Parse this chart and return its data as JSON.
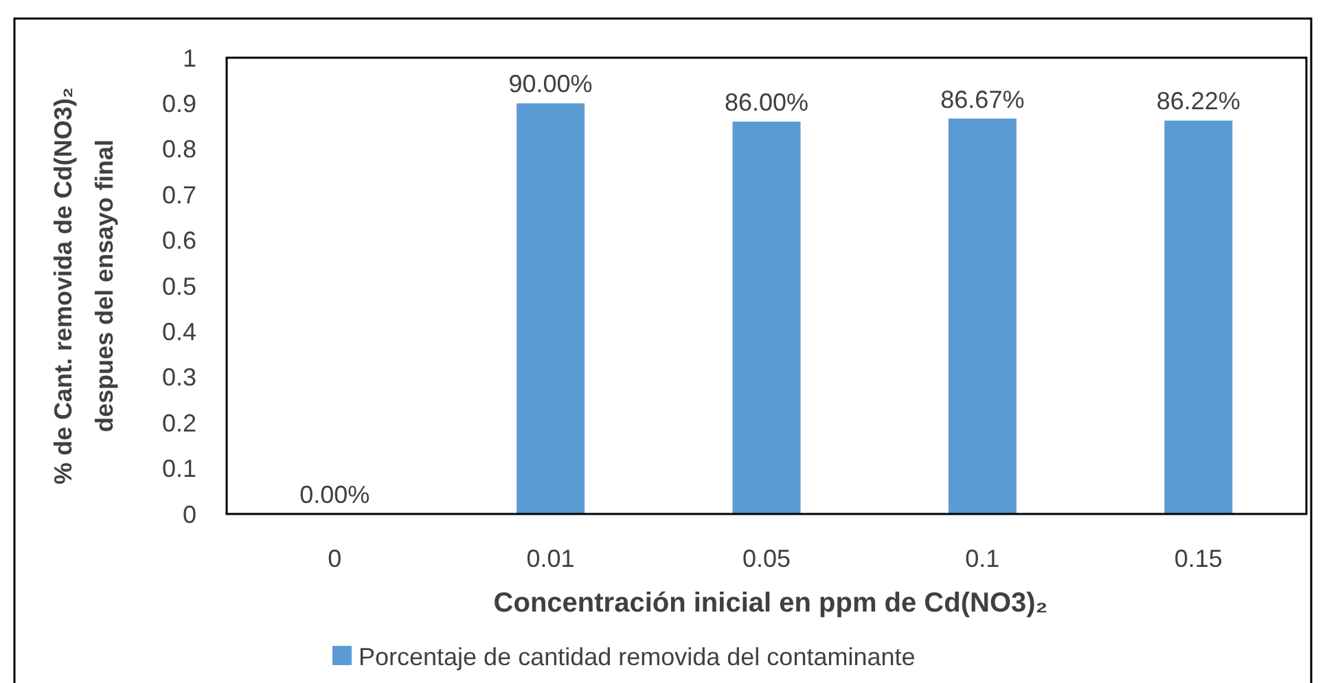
{
  "chart_data": {
    "type": "bar",
    "xlabel": "Concentración inicial en ppm de Cd(NO3)₂",
    "ylabel": "% de Cant. removida  de Cd(NO3)₂\ndespues del ensayo final",
    "categories": [
      "0",
      "0.01",
      "0.05",
      "0.1",
      "0.15"
    ],
    "series": [
      {
        "name": "Porcentaje de cantidad removida del contaminante",
        "color": "#5b9bd5",
        "values": [
          0,
          0.9,
          0.86,
          0.8667,
          0.8622
        ],
        "value_labels": [
          "0.00%",
          "90.00%",
          "86.00%",
          "86.67%",
          "86.22%"
        ]
      }
    ],
    "ylim": [
      0,
      1
    ],
    "yticks": [
      0,
      0.1,
      0.2,
      0.3,
      0.4,
      0.5,
      0.6,
      0.7,
      0.8,
      0.9,
      1
    ],
    "grid": false,
    "legend": "bottom"
  }
}
